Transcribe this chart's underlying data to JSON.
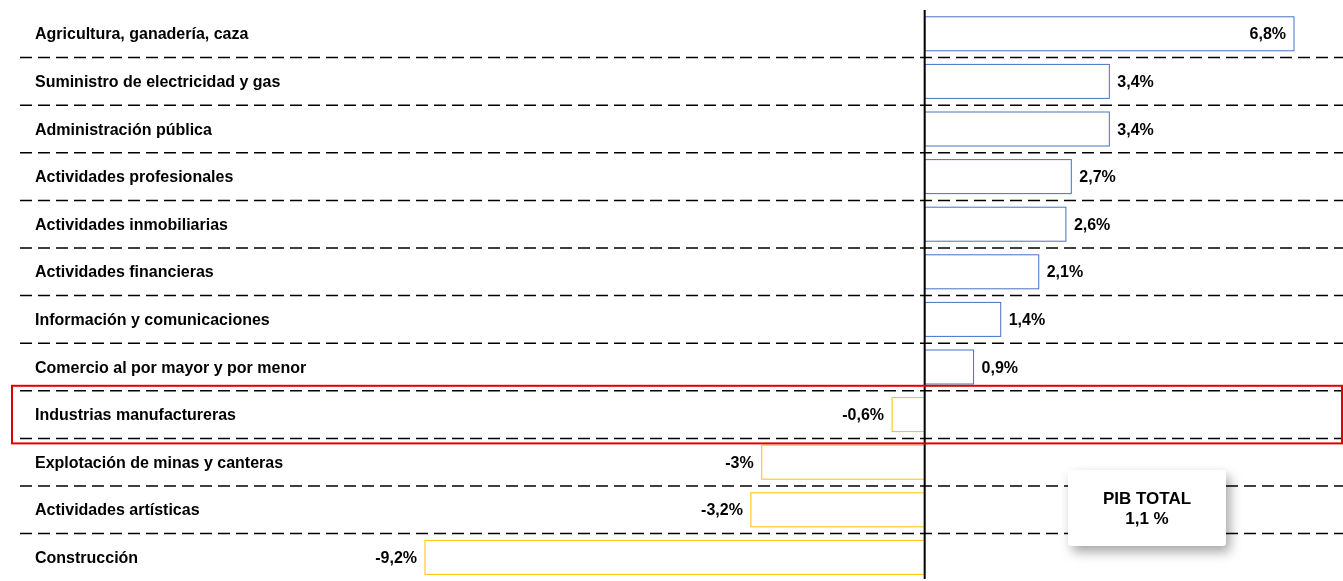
{
  "chart_data": {
    "type": "bar",
    "orientation": "horizontal",
    "categories": [
      "Agricultura, ganadería, caza",
      "Suministro de electricidad y gas",
      "Administración pública",
      "Actividades profesionales",
      "Actividades inmobiliarias",
      "Actividades financieras",
      "Información y comunicaciones",
      "Comercio al por mayor y por menor",
      "Industrias manufactureras",
      "Explotación de minas y canteras",
      "Actividades artísticas",
      "Construcción"
    ],
    "values": [
      6.8,
      3.4,
      3.4,
      2.7,
      2.6,
      2.1,
      1.4,
      0.9,
      -0.6,
      -3,
      -3.2,
      -9.2
    ],
    "colors": [
      "#4472c4",
      "#4472c4",
      "#4472c4",
      "#4472c4",
      "#4472c4",
      "#4472c4",
      "#4472c4",
      "#4472c4",
      "#ffc000",
      "#ffc000",
      "#ffc000",
      "#ffc000"
    ],
    "value_labels": [
      "6,8%",
      "3,4%",
      "3,4%",
      "2,7%",
      "2,6%",
      "2,1%",
      "1,4%",
      "0,9%",
      "-0,6%",
      "-3%",
      "-3,2%",
      "-9,2%"
    ],
    "relative": false,
    "annotations": [
      "PIB TOTAL\n1,1 %"
    ],
    "grid": "y"
  }
}
